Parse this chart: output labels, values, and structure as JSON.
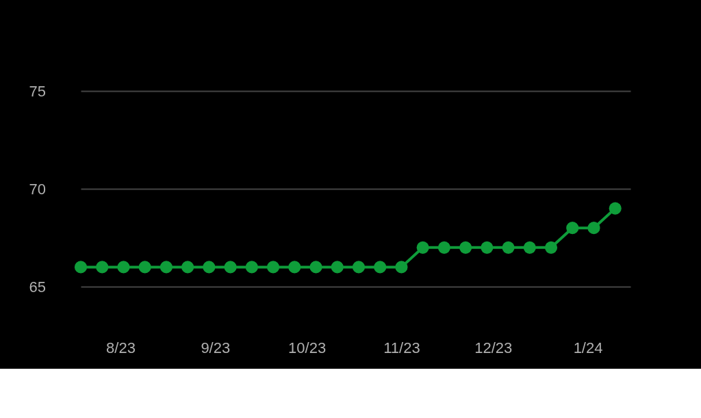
{
  "chart_data": {
    "type": "line",
    "x": [
      "2023-07-19",
      "2023-07-26",
      "2023-08-02",
      "2023-08-09",
      "2023-08-16",
      "2023-08-23",
      "2023-08-30",
      "2023-09-06",
      "2023-09-13",
      "2023-09-20",
      "2023-09-27",
      "2023-10-04",
      "2023-10-11",
      "2023-10-18",
      "2023-10-25",
      "2023-11-01",
      "2023-11-08",
      "2023-11-15",
      "2023-11-22",
      "2023-11-29",
      "2023-12-06",
      "2023-12-13",
      "2023-12-20",
      "2023-12-27",
      "2024-01-03",
      "2024-01-10"
    ],
    "series": [
      {
        "color": "#0f9d3a",
        "values": [
          66,
          66,
          66,
          66,
          66,
          66,
          66,
          66,
          66,
          66,
          66,
          66,
          66,
          66,
          66,
          66,
          67,
          67,
          67,
          67,
          67,
          67,
          67,
          68,
          68,
          69
        ]
      }
    ],
    "xlim": [
      "2023-07-19",
      "2024-01-15"
    ],
    "xticks": [
      {
        "value": "2023-08-01",
        "label": "8/23"
      },
      {
        "value": "2023-09-01",
        "label": "9/23"
      },
      {
        "value": "2023-10-01",
        "label": "10/23"
      },
      {
        "value": "2023-11-01",
        "label": "11/23"
      },
      {
        "value": "2023-12-01",
        "label": "12/23"
      },
      {
        "value": "2024-01-01",
        "label": "1/24"
      }
    ],
    "ylim": [
      65,
      75
    ],
    "yticks": [
      65,
      70,
      75
    ],
    "grid": "y",
    "marker": "circle",
    "line_style": "solid"
  }
}
